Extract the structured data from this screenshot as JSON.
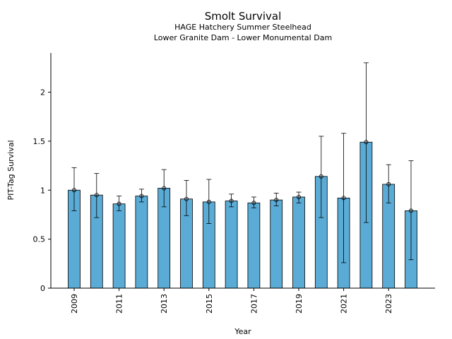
{
  "chart_data": {
    "type": "bar",
    "title": "Smolt Survival",
    "subtitle": [
      "HAGE Hatchery Summer Steelhead",
      "Lower Granite Dam - Lower Monumental Dam"
    ],
    "xlabel": "Year",
    "ylabel": "PIT-Tag Survival",
    "categories": [
      "2009",
      "2010",
      "2011",
      "2012",
      "2013",
      "2014",
      "2015",
      "2016",
      "2017",
      "2018",
      "2019",
      "2020",
      "2021",
      "2022",
      "2023",
      "2024"
    ],
    "x_tick_labels": [
      "2009",
      "2011",
      "2013",
      "2015",
      "2017",
      "2019",
      "2021",
      "2023"
    ],
    "values": [
      1.0,
      0.95,
      0.86,
      0.94,
      1.02,
      0.91,
      0.88,
      0.89,
      0.87,
      0.9,
      0.93,
      1.14,
      0.92,
      1.49,
      1.06,
      0.79
    ],
    "lower": [
      0.79,
      0.72,
      0.79,
      0.88,
      0.83,
      0.74,
      0.66,
      0.83,
      0.82,
      0.84,
      0.87,
      0.72,
      0.26,
      0.67,
      0.87,
      0.29
    ],
    "upper": [
      1.23,
      1.17,
      0.94,
      1.01,
      1.21,
      1.1,
      1.11,
      0.96,
      0.93,
      0.97,
      0.98,
      1.55,
      1.58,
      2.3,
      1.26,
      1.3
    ],
    "ylim": [
      0,
      2.4
    ],
    "y_ticks": [
      0,
      0.5,
      1,
      1.5,
      2
    ],
    "y_tick_labels": [
      "0",
      "0.5",
      "1",
      "1.5",
      "2"
    ],
    "grid": false,
    "colors": {
      "bar": "#5aabd6",
      "edge": "#000000"
    }
  }
}
